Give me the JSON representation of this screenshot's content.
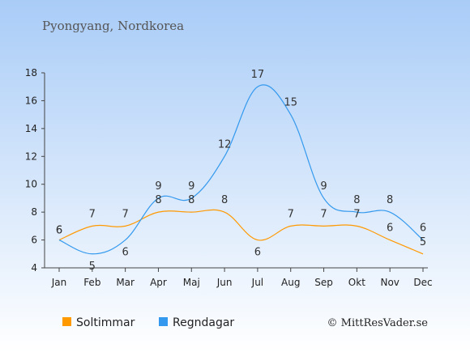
{
  "chart_data": {
    "type": "line",
    "title": "Pyongyang, Nordkorea",
    "categories": [
      "Jan",
      "Feb",
      "Mar",
      "Apr",
      "Maj",
      "Jun",
      "Jul",
      "Aug",
      "Sep",
      "Okt",
      "Nov",
      "Dec"
    ],
    "series": [
      {
        "name": "Soltimmar",
        "color": "#ff9900",
        "values": [
          6,
          7,
          7,
          8,
          8,
          8,
          6,
          7,
          7,
          7,
          6,
          5
        ]
      },
      {
        "name": "Regndagar",
        "color": "#3399ee",
        "values": [
          6,
          5,
          6,
          9,
          9,
          12,
          17,
          15,
          9,
          8,
          8,
          6
        ]
      }
    ],
    "ylim": [
      4,
      18
    ],
    "yticks": [
      4,
      6,
      8,
      10,
      12,
      14,
      16,
      18
    ],
    "legend_position": "bottom",
    "grid": false
  },
  "credit": "© MittResVader.se",
  "colors": {
    "background_top": "#a9ccf7",
    "background_bottom": "#ffffff"
  }
}
